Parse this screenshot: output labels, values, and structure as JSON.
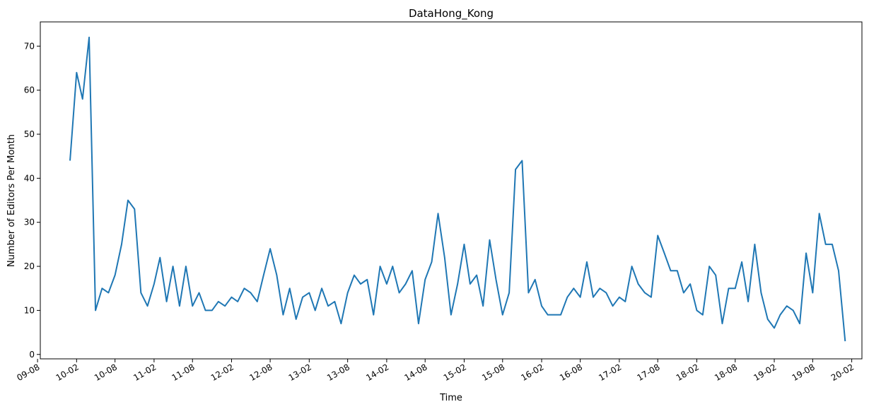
{
  "chart_data": {
    "type": "line",
    "title": "DataHong_Kong",
    "xlabel": "Time",
    "ylabel": "Number of Editors Per Month",
    "ylim": [
      -1,
      75.5
    ],
    "xlim": [
      "2009-08-14",
      "2020-03-20"
    ],
    "grid": false,
    "color": "#1f77b4",
    "x_ticks": [
      {
        "date": "2009-08-01",
        "label": "09-08"
      },
      {
        "date": "2010-02-01",
        "label": "10-02"
      },
      {
        "date": "2010-08-01",
        "label": "10-08"
      },
      {
        "date": "2011-02-01",
        "label": "11-02"
      },
      {
        "date": "2011-08-01",
        "label": "11-08"
      },
      {
        "date": "2012-02-01",
        "label": "12-02"
      },
      {
        "date": "2012-08-01",
        "label": "12-08"
      },
      {
        "date": "2013-02-01",
        "label": "13-02"
      },
      {
        "date": "2013-08-01",
        "label": "13-08"
      },
      {
        "date": "2014-02-01",
        "label": "14-02"
      },
      {
        "date": "2014-08-01",
        "label": "14-08"
      },
      {
        "date": "2015-02-01",
        "label": "15-02"
      },
      {
        "date": "2015-08-01",
        "label": "15-08"
      },
      {
        "date": "2016-02-01",
        "label": "16-02"
      },
      {
        "date": "2016-08-01",
        "label": "16-08"
      },
      {
        "date": "2017-02-01",
        "label": "17-02"
      },
      {
        "date": "2017-08-01",
        "label": "17-08"
      },
      {
        "date": "2018-02-01",
        "label": "18-02"
      },
      {
        "date": "2018-08-01",
        "label": "18-08"
      },
      {
        "date": "2019-02-01",
        "label": "19-02"
      },
      {
        "date": "2019-08-01",
        "label": "19-08"
      },
      {
        "date": "2020-02-01",
        "label": "20-02"
      }
    ],
    "y_ticks": [
      0,
      10,
      20,
      30,
      40,
      50,
      60,
      70
    ],
    "series": [
      {
        "x": [
          "2010-01",
          "2010-02",
          "2010-03",
          "2010-04",
          "2010-05",
          "2010-06",
          "2010-07",
          "2010-08",
          "2010-09",
          "2010-10",
          "2010-11",
          "2010-12",
          "2011-01",
          "2011-02",
          "2011-03",
          "2011-04",
          "2011-05",
          "2011-06",
          "2011-07",
          "2011-08",
          "2011-09",
          "2011-10",
          "2011-11",
          "2011-12",
          "2012-01",
          "2012-02",
          "2012-03",
          "2012-04",
          "2012-05",
          "2012-06",
          "2012-07",
          "2012-08",
          "2012-09",
          "2012-10",
          "2012-11",
          "2012-12",
          "2013-01",
          "2013-02",
          "2013-03",
          "2013-04",
          "2013-05",
          "2013-06",
          "2013-07",
          "2013-08",
          "2013-09",
          "2013-10",
          "2013-11",
          "2013-12",
          "2014-01",
          "2014-02",
          "2014-03",
          "2014-04",
          "2014-05",
          "2014-06",
          "2014-07",
          "2014-08",
          "2014-09",
          "2014-10",
          "2014-11",
          "2014-12",
          "2015-01",
          "2015-02",
          "2015-03",
          "2015-04",
          "2015-05",
          "2015-06",
          "2015-07",
          "2015-08",
          "2015-09",
          "2015-10",
          "2015-11",
          "2015-12",
          "2016-01",
          "2016-02",
          "2016-03",
          "2016-04",
          "2016-05",
          "2016-06",
          "2016-07",
          "2016-08",
          "2016-09",
          "2016-10",
          "2016-11",
          "2016-12",
          "2017-01",
          "2017-02",
          "2017-03",
          "2017-04",
          "2017-05",
          "2017-06",
          "2017-07",
          "2017-08",
          "2017-09",
          "2017-10",
          "2017-11",
          "2017-12",
          "2018-01",
          "2018-02",
          "2018-03",
          "2018-04",
          "2018-05",
          "2018-06",
          "2018-07",
          "2018-08",
          "2018-09",
          "2018-10",
          "2018-11",
          "2018-12",
          "2019-01",
          "2019-02",
          "2019-03",
          "2019-04",
          "2019-05",
          "2019-06",
          "2019-07",
          "2019-08",
          "2019-09",
          "2019-10",
          "2019-11",
          "2019-12",
          "2020-01"
        ],
        "values": [
          44,
          64,
          58,
          72,
          10,
          15,
          14,
          18,
          25,
          35,
          33,
          14,
          11,
          16,
          22,
          12,
          20,
          11,
          20,
          11,
          14,
          10,
          10,
          12,
          11,
          13,
          12,
          15,
          14,
          12,
          18,
          24,
          18,
          9,
          15,
          8,
          13,
          14,
          10,
          15,
          11,
          12,
          7,
          14,
          18,
          16,
          17,
          9,
          20,
          16,
          20,
          14,
          16,
          19,
          7,
          17,
          21,
          32,
          22,
          9,
          16,
          25,
          16,
          18,
          11,
          26,
          17,
          9,
          14,
          42,
          44,
          14,
          17,
          11,
          9,
          9,
          9,
          13,
          15,
          13,
          21,
          13,
          15,
          14,
          11,
          13,
          12,
          20,
          16,
          14,
          13,
          27,
          23,
          19,
          19,
          14,
          16,
          10,
          9,
          20,
          18,
          7,
          15,
          15,
          21,
          12,
          25,
          14,
          8,
          6,
          9,
          11,
          10,
          7,
          23,
          14,
          32,
          25,
          25,
          19,
          3
        ]
      }
    ]
  }
}
